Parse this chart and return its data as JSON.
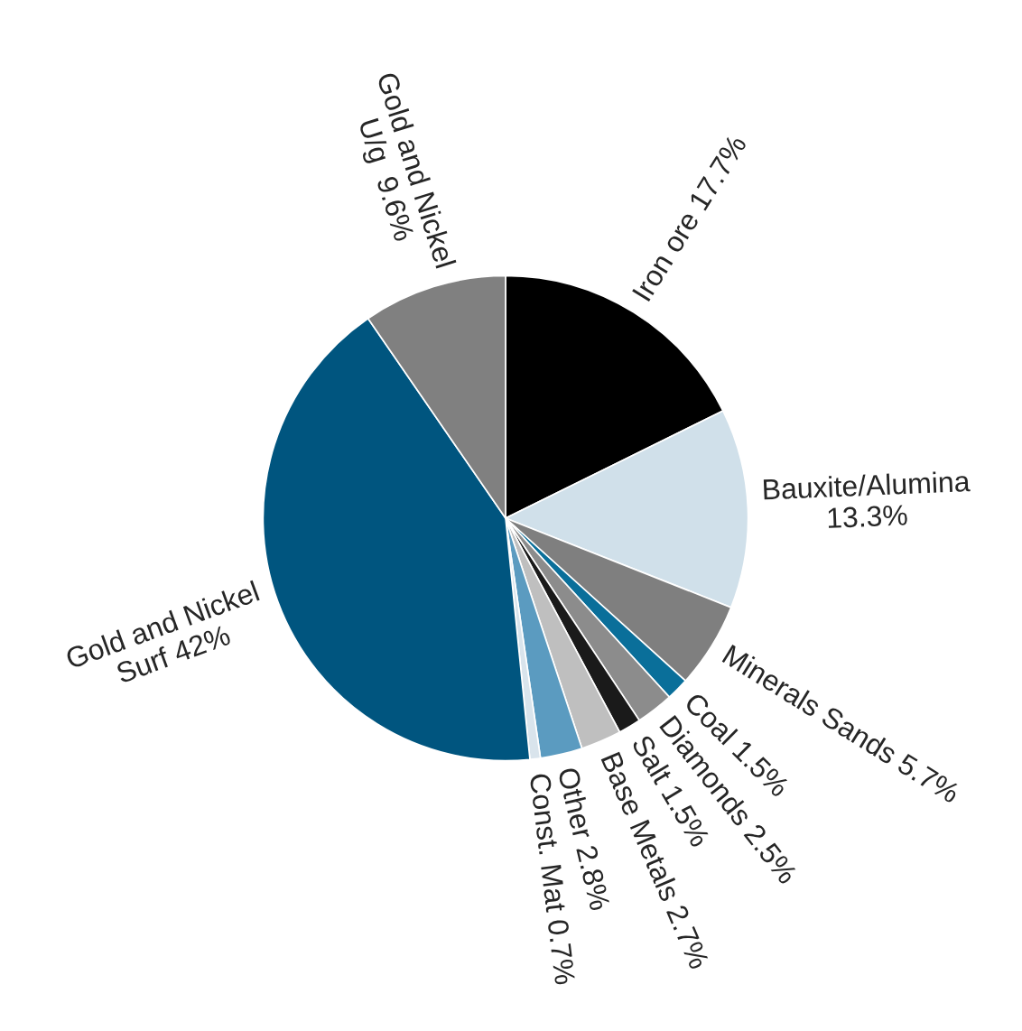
{
  "chart_data": {
    "type": "pie",
    "categories": [
      "Iron ore 17.7%",
      "Bauxite/Alumina\n13.3%",
      "Minerals Sands 5.7%",
      "Coal 1.5%",
      "Diamonds 2.5%",
      "Salt 1.5%",
      "Base Metals 2.7%",
      "Other 2.8%",
      "Const. Mat 0.7%",
      "Gold and Nickel\nSurf 42%",
      "Gold and Nickel\nU/g  9.6%"
    ],
    "values": [
      17.7,
      13.3,
      5.7,
      1.5,
      2.5,
      1.5,
      2.7,
      2.8,
      0.7,
      42,
      9.6
    ],
    "colors": [
      "#000000",
      "#d0e0ea",
      "#7f7f7f",
      "#0a6f9a",
      "#8c8c8c",
      "#1a1a1a",
      "#bfbfbf",
      "#5b9bc0",
      "#d9e4ec",
      "#00557f",
      "#808080"
    ]
  }
}
